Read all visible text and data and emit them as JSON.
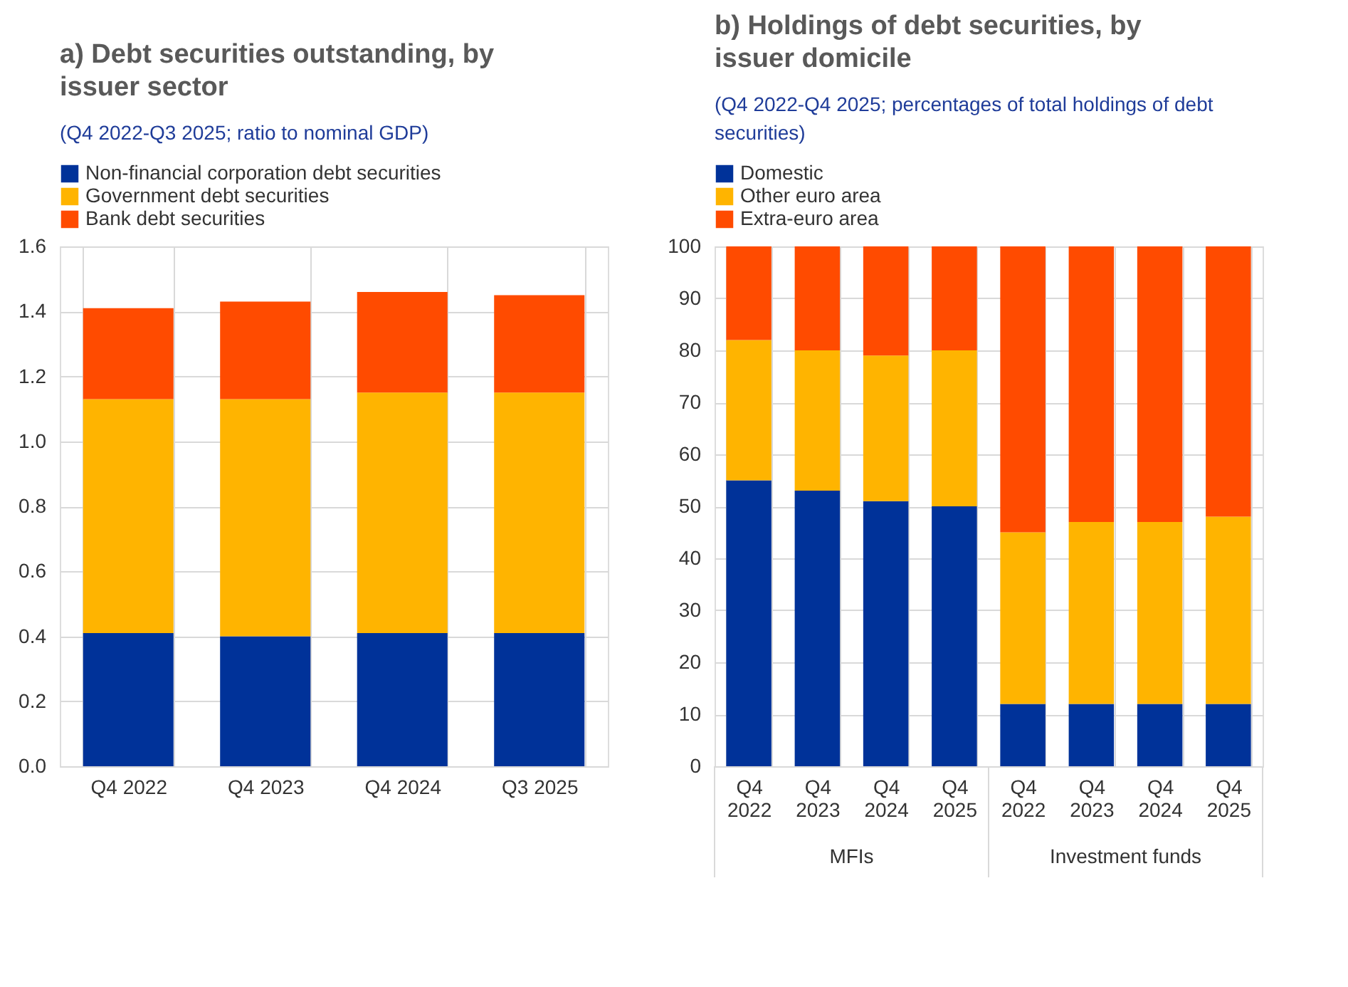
{
  "chart_data": [
    {
      "type": "bar",
      "title": "a) Debt securities outstanding, by issuer sector",
      "subtitle": "(Q4 2022-Q3 2025; ratio to nominal GDP)",
      "stacked": true,
      "legend": "top",
      "grid": true,
      "categories": [
        "Q4 2022",
        "Q4 2023",
        "Q4 2024",
        "Q3 2025"
      ],
      "ylim": [
        0,
        1.6
      ],
      "yticks": [
        {
          "value": 0,
          "label": "0.0"
        },
        {
          "value": 0.2,
          "label": "0.2"
        },
        {
          "value": 0.4,
          "label": "0.4"
        },
        {
          "value": 0.6,
          "label": "0.6"
        },
        {
          "value": 0.8,
          "label": "0.8"
        },
        {
          "value": 1,
          "label": "1.0"
        },
        {
          "value": 1.2,
          "label": "1.2"
        },
        {
          "value": 1.4,
          "label": "1.4"
        },
        {
          "value": 1.6,
          "label": "1.6"
        }
      ],
      "series": [
        {
          "name": "Non-financial corporation debt securities",
          "color": "#003299",
          "values": [
            0.41,
            0.4,
            0.41,
            0.41
          ]
        },
        {
          "name": "Government debt securities",
          "color": "#ffb400",
          "values": [
            0.72,
            0.73,
            0.74,
            0.74
          ]
        },
        {
          "name": "Bank debt securities",
          "color": "#ff4b00",
          "values": [
            0.28,
            0.3,
            0.31,
            0.3
          ]
        }
      ]
    },
    {
      "type": "bar",
      "title": "b) Holdings of debt securities, by issuer domicile",
      "subtitle": "(Q4 2022-Q4 2025; percentages of total holdings of debt securities)",
      "stacked": true,
      "legend": "top",
      "grid": true,
      "categories": [
        "Q4 2022",
        "Q4 2023",
        "Q4 2024",
        "Q4 2025",
        "Q4 2022",
        "Q4 2023",
        "Q4 2024",
        "Q4 2025"
      ],
      "annotations": [
        "MFIs",
        "Investment funds"
      ],
      "ylim": [
        0,
        100
      ],
      "yticks": [
        0,
        10,
        20,
        30,
        40,
        50,
        60,
        70,
        80,
        90,
        100
      ],
      "series": [
        {
          "name": "Domestic",
          "color": "#003299",
          "values": [
            55,
            53,
            51,
            50,
            12,
            12,
            12,
            12
          ]
        },
        {
          "name": "Other euro area",
          "color": "#ffb400",
          "values": [
            27,
            27,
            28,
            30,
            33,
            35,
            35,
            36
          ]
        },
        {
          "name": "Extra-euro area",
          "color": "#ff4b00",
          "values": [
            18,
            20,
            21,
            20,
            55,
            53,
            53,
            52
          ]
        }
      ]
    }
  ]
}
